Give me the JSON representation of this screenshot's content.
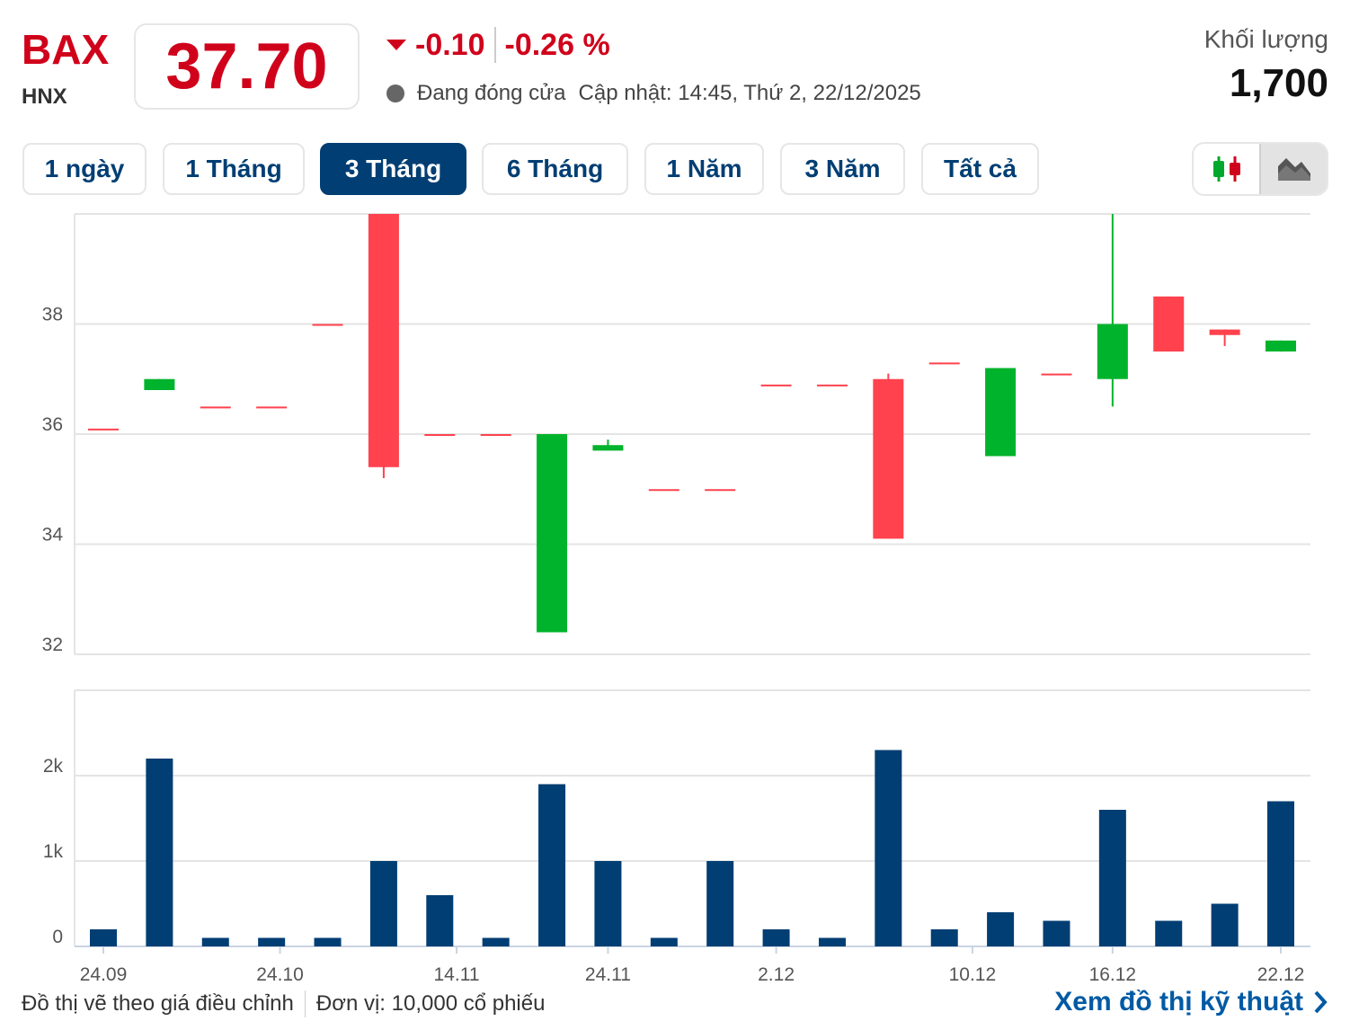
{
  "header": {
    "symbol": "BAX",
    "exchange": "HNX",
    "price": "37.70",
    "change": "-0.10",
    "change_pct": "-0.26 %",
    "status": "Đang đóng cửa",
    "updated": "Cập nhật: 14:45, Thứ 2, 22/12/2025",
    "volume_label": "Khối lượng",
    "volume_value": "1,700"
  },
  "tabs": [
    {
      "label": "1 ngày",
      "active": false
    },
    {
      "label": "1 Tháng",
      "active": false
    },
    {
      "label": "3 Tháng",
      "active": true
    },
    {
      "label": "6 Tháng",
      "active": false
    },
    {
      "label": "1 Năm",
      "active": false
    },
    {
      "label": "3 Năm",
      "active": false
    },
    {
      "label": "Tất cả",
      "active": false
    }
  ],
  "chart_type_switch": {
    "options": [
      "candlestick-icon",
      "area-chart-icon"
    ],
    "selected": "area-chart-icon"
  },
  "colors": {
    "up": "#00b32c",
    "down": "#ff424e",
    "volume": "#003e73",
    "accent": "#d0021b",
    "tab_active": "#003e73"
  },
  "chart_data": [
    {
      "type": "candlestick",
      "ylim": [
        32,
        40
      ],
      "yticks": [
        32,
        34,
        36,
        38
      ],
      "grid": true,
      "candles": [
        {
          "o": 36.1,
          "h": 36.1,
          "l": 36.1,
          "c": 36.1
        },
        {
          "o": 36.8,
          "h": 37.0,
          "l": 36.8,
          "c": 37.0
        },
        {
          "o": 36.5,
          "h": 36.5,
          "l": 36.5,
          "c": 36.5
        },
        {
          "o": 36.5,
          "h": 36.5,
          "l": 36.5,
          "c": 36.5
        },
        {
          "o": 38.0,
          "h": 38.0,
          "l": 38.0,
          "c": 38.0
        },
        {
          "o": 40.0,
          "h": 40.0,
          "l": 35.2,
          "c": 35.4
        },
        {
          "o": 36.0,
          "h": 36.0,
          "l": 36.0,
          "c": 36.0
        },
        {
          "o": 36.0,
          "h": 36.0,
          "l": 36.0,
          "c": 36.0
        },
        {
          "o": 32.4,
          "h": 36.0,
          "l": 32.4,
          "c": 36.0
        },
        {
          "o": 35.7,
          "h": 35.9,
          "l": 35.7,
          "c": 35.8
        },
        {
          "o": 35.0,
          "h": 35.0,
          "l": 35.0,
          "c": 35.0
        },
        {
          "o": 35.0,
          "h": 35.0,
          "l": 35.0,
          "c": 35.0
        },
        {
          "o": 36.9,
          "h": 36.9,
          "l": 36.9,
          "c": 36.9
        },
        {
          "o": 36.9,
          "h": 36.9,
          "l": 36.9,
          "c": 36.9
        },
        {
          "o": 37.0,
          "h": 37.1,
          "l": 34.1,
          "c": 34.1
        },
        {
          "o": 37.3,
          "h": 37.3,
          "l": 37.3,
          "c": 37.3
        },
        {
          "o": 35.6,
          "h": 37.2,
          "l": 35.6,
          "c": 37.2
        },
        {
          "o": 37.1,
          "h": 37.1,
          "l": 37.1,
          "c": 37.1
        },
        {
          "o": 37.0,
          "h": 40.0,
          "l": 36.5,
          "c": 38.0
        },
        {
          "o": 38.5,
          "h": 38.5,
          "l": 37.5,
          "c": 37.5
        },
        {
          "o": 37.9,
          "h": 37.9,
          "l": 37.6,
          "c": 37.8
        },
        {
          "o": 37.5,
          "h": 37.7,
          "l": 37.5,
          "c": 37.7
        }
      ]
    },
    {
      "type": "bar",
      "ylim": [
        0,
        3000
      ],
      "yticks": [
        {
          "v": 0,
          "label": "0"
        },
        {
          "v": 1000,
          "label": "1k"
        },
        {
          "v": 2000,
          "label": "2k"
        }
      ],
      "grid": true,
      "values": [
        200,
        2200,
        100,
        100,
        100,
        1000,
        600,
        100,
        1900,
        1000,
        100,
        1000,
        200,
        100,
        2300,
        200,
        400,
        300,
        1600,
        300,
        500,
        1700
      ],
      "xticks": [
        {
          "label": "24.09",
          "index": 0
        },
        {
          "label": "24.10",
          "index": 3.15
        },
        {
          "label": "14.11",
          "index": 6.3
        },
        {
          "label": "24.11",
          "index": 9
        },
        {
          "label": "2.12",
          "index": 12
        },
        {
          "label": "10.12",
          "index": 15.5
        },
        {
          "label": "16.12",
          "index": 18
        },
        {
          "label": "22.12",
          "index": 21
        }
      ]
    }
  ],
  "footer": {
    "note": "Đồ thị vẽ theo giá điều chỉnh",
    "unit": "Đơn vị: 10,000 cổ phiếu",
    "tech_link": "Xem đồ thị kỹ thuật"
  }
}
